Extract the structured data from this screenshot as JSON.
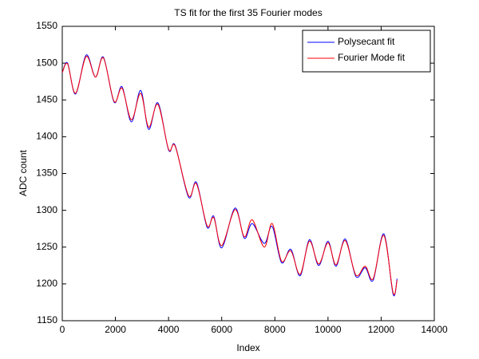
{
  "chart_data": {
    "type": "line",
    "title": "TS fit for the first 35 Fourier modes",
    "xlabel": "Index",
    "ylabel": "ADC count",
    "x": [
      0,
      200,
      500,
      900,
      1250,
      1550,
      1950,
      2250,
      2600,
      2950,
      3250,
      3600,
      4000,
      4250,
      4750,
      5050,
      5450,
      5700,
      6000,
      6500,
      6850,
      7150,
      7600,
      7900,
      8250,
      8600,
      8950,
      9300,
      9650,
      10000,
      10300,
      10650,
      11050,
      11400,
      11700,
      12100,
      12450,
      12600
    ],
    "series": [
      {
        "name": "Polysecant fit",
        "color": "#0000ff",
        "values": [
          1487,
          1500,
          1458,
          1511,
          1481,
          1508,
          1447,
          1468,
          1420,
          1463,
          1410,
          1446,
          1382,
          1388,
          1318,
          1338,
          1277,
          1292,
          1249,
          1303,
          1262,
          1282,
          1255,
          1278,
          1229,
          1247,
          1211,
          1260,
          1225,
          1258,
          1224,
          1261,
          1210,
          1222,
          1205,
          1268,
          1186,
          1207
        ]
      },
      {
        "name": "Fourier Mode fit",
        "color": "#ff0000",
        "values": [
          1487,
          1499,
          1459,
          1509,
          1481,
          1507,
          1448,
          1466,
          1423,
          1459,
          1413,
          1444,
          1383,
          1387,
          1320,
          1336,
          1279,
          1290,
          1252,
          1301,
          1264,
          1287,
          1250,
          1282,
          1231,
          1245,
          1213,
          1258,
          1227,
          1256,
          1226,
          1259,
          1212,
          1224,
          1207,
          1266,
          1188,
          1205
        ]
      }
    ],
    "xlim": [
      0,
      14000
    ],
    "xticks": [
      0,
      2000,
      4000,
      6000,
      8000,
      10000,
      12000,
      14000
    ],
    "ylim": [
      1150,
      1550
    ],
    "yticks": [
      1150,
      1200,
      1250,
      1300,
      1350,
      1400,
      1450,
      1500,
      1550
    ],
    "legend": "northeast",
    "grid": false
  }
}
